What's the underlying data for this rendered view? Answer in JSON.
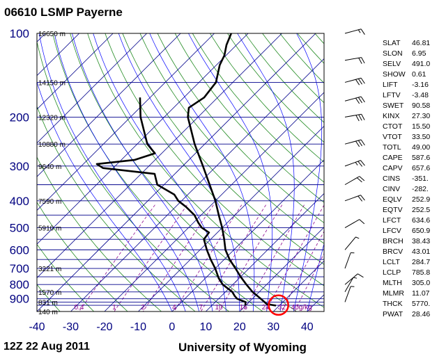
{
  "title": "06610 LSMP Payerne",
  "footer": {
    "time": "12Z 22 Aug 2011",
    "source": "University of Wyoming"
  },
  "colors": {
    "frame": "#000000",
    "isobar": "#00008b",
    "isotherm": "#00008b",
    "dry_adiabat": "#228b22",
    "moist_adiabat": "#0000ff",
    "mixing_ratio": "#8b008b",
    "axis_label": "#000080",
    "sounding": "#000000",
    "highlight_circle": "#ff0000"
  },
  "chart_data": {
    "type": "line",
    "chart_kind": "skew-T log-P sounding diagram",
    "xlabel": "",
    "ylabel": "",
    "xlim": [
      -40,
      45
    ],
    "ylim": [
      1000,
      100
    ],
    "y_scale": "log",
    "x_ticks": [
      -40,
      -30,
      -20,
      -10,
      0,
      10,
      20,
      30,
      40
    ],
    "x_tick_labels": [
      "-40",
      "-30",
      "-20",
      "-10",
      "0",
      "10",
      "20",
      "30",
      "40"
    ],
    "pressure_labels": [
      {
        "p": 100,
        "label": "100"
      },
      {
        "p": 200,
        "label": "200"
      },
      {
        "p": 300,
        "label": "300"
      },
      {
        "p": 400,
        "label": "400"
      },
      {
        "p": 500,
        "label": "500"
      },
      {
        "p": 600,
        "label": "600"
      },
      {
        "p": 700,
        "label": "700"
      },
      {
        "p": 800,
        "label": "800"
      },
      {
        "p": 900,
        "label": "900"
      }
    ],
    "isobars": [
      100,
      150,
      200,
      250,
      300,
      350,
      400,
      450,
      500,
      550,
      600,
      650,
      700,
      750,
      800,
      850,
      900,
      925,
      950,
      1000
    ],
    "height_labels": [
      {
        "p": 100,
        "label": "16650 m"
      },
      {
        "p": 150,
        "label": "14150 m"
      },
      {
        "p": 200,
        "label": "12320 m"
      },
      {
        "p": 250,
        "label": "10880 m"
      },
      {
        "p": 300,
        "label": "9640 m"
      },
      {
        "p": 400,
        "label": "7590 m"
      },
      {
        "p": 500,
        "label": "5910 m"
      },
      {
        "p": 700,
        "label": "3221 m"
      },
      {
        "p": 850,
        "label": "1570 m"
      },
      {
        "p": 925,
        "label": "831 m"
      },
      {
        "p": 1000,
        "label": "140 m"
      }
    ],
    "mixing_ratio_labels": [
      "0.4",
      "1",
      "2",
      "4",
      "7",
      "10",
      "16",
      "24",
      "32",
      "40g/kg"
    ],
    "mixing_ratio_values": [
      0.4,
      1,
      2,
      4,
      7,
      10,
      16,
      24,
      32,
      40
    ],
    "series": [
      {
        "role": "temperature",
        "color": "#000000",
        "points": [
          {
            "p": 952,
            "t": 29.0
          },
          {
            "p": 940,
            "t": 25.8
          },
          {
            "p": 925,
            "t": 24.6
          },
          {
            "p": 900,
            "t": 22.5
          },
          {
            "p": 850,
            "t": 18.0
          },
          {
            "p": 800,
            "t": 14.0
          },
          {
            "p": 750,
            "t": 10.0
          },
          {
            "p": 700,
            "t": 6.0
          },
          {
            "p": 650,
            "t": 1.6
          },
          {
            "p": 600,
            "t": -2.5
          },
          {
            "p": 550,
            "t": -6.0
          },
          {
            "p": 500,
            "t": -10.0
          },
          {
            "p": 450,
            "t": -14.8
          },
          {
            "p": 400,
            "t": -20.0
          },
          {
            "p": 350,
            "t": -26.5
          },
          {
            "p": 300,
            "t": -34.0
          },
          {
            "p": 250,
            "t": -43.0
          },
          {
            "p": 200,
            "t": -53.0
          },
          {
            "p": 185,
            "t": -55.5
          },
          {
            "p": 170,
            "t": -54.0
          },
          {
            "p": 150,
            "t": -55.0
          },
          {
            "p": 130,
            "t": -59.0
          },
          {
            "p": 120,
            "t": -60.5
          },
          {
            "p": 110,
            "t": -63.0
          },
          {
            "p": 100,
            "t": -65.0
          }
        ]
      },
      {
        "role": "dewpoint",
        "color": "#000000",
        "points": [
          {
            "p": 952,
            "t": 20.0
          },
          {
            "p": 940,
            "t": 19.5
          },
          {
            "p": 925,
            "t": 19.0
          },
          {
            "p": 900,
            "t": 15.5
          },
          {
            "p": 880,
            "t": 14.0
          },
          {
            "p": 850,
            "t": 12.0
          },
          {
            "p": 800,
            "t": 7.0
          },
          {
            "p": 760,
            "t": 4.0
          },
          {
            "p": 700,
            "t": 0.0
          },
          {
            "p": 650,
            "t": -4.0
          },
          {
            "p": 600,
            "t": -8.0
          },
          {
            "p": 550,
            "t": -12.0
          },
          {
            "p": 520,
            "t": -12.5
          },
          {
            "p": 500,
            "t": -16.0
          },
          {
            "p": 480,
            "t": -18.5
          },
          {
            "p": 450,
            "t": -22.0
          },
          {
            "p": 420,
            "t": -27.0
          },
          {
            "p": 400,
            "t": -31.0
          },
          {
            "p": 380,
            "t": -34.0
          },
          {
            "p": 350,
            "t": -42.0
          },
          {
            "p": 320,
            "t": -46.0
          },
          {
            "p": 305,
            "t": -63.0
          },
          {
            "p": 295,
            "t": -66.0
          },
          {
            "p": 285,
            "t": -56.0
          },
          {
            "p": 270,
            "t": -52.0
          },
          {
            "p": 250,
            "t": -57.0
          },
          {
            "p": 200,
            "t": -67.0
          },
          {
            "p": 170,
            "t": -73.0
          }
        ]
      }
    ],
    "wind_barbs": [
      {
        "p": 100,
        "dir": 255,
        "spd": 15
      },
      {
        "p": 125,
        "dir": 260,
        "spd": 20
      },
      {
        "p": 150,
        "dir": 255,
        "spd": 30
      },
      {
        "p": 175,
        "dir": 255,
        "spd": 30
      },
      {
        "p": 200,
        "dir": 260,
        "spd": 30
      },
      {
        "p": 250,
        "dir": 255,
        "spd": 30
      },
      {
        "p": 300,
        "dir": 250,
        "spd": 25
      },
      {
        "p": 350,
        "dir": 240,
        "spd": 20
      },
      {
        "p": 400,
        "dir": 250,
        "spd": 20
      },
      {
        "p": 500,
        "dir": 240,
        "spd": 10
      },
      {
        "p": 600,
        "dir": 220,
        "spd": 5
      },
      {
        "p": 700,
        "dir": 200,
        "spd": 5
      },
      {
        "p": 800,
        "dir": 230,
        "spd": 10
      },
      {
        "p": 850,
        "dir": 210,
        "spd": 5
      },
      {
        "p": 925,
        "dir": 200,
        "spd": 5
      }
    ],
    "highlight": {
      "p": 880,
      "t": 29
    }
  },
  "indices": [
    {
      "key": "SLAT",
      "value": "46.81"
    },
    {
      "key": "SLON",
      "value": "6.95"
    },
    {
      "key": "SELV",
      "value": "491.0"
    },
    {
      "key": "SHOW",
      "value": "0.61"
    },
    {
      "key": "LIFT",
      "value": "-3.16"
    },
    {
      "key": "LFTV",
      "value": "-3.48"
    },
    {
      "key": "SWET",
      "value": "90.58"
    },
    {
      "key": "KINX",
      "value": "27.30"
    },
    {
      "key": "CTOT",
      "value": "15.50"
    },
    {
      "key": "VTOT",
      "value": "33.50"
    },
    {
      "key": "TOTL",
      "value": "49.00"
    },
    {
      "key": "CAPE",
      "value": "587.6"
    },
    {
      "key": "CAPV",
      "value": "657.6"
    },
    {
      "key": "CINS",
      "value": "-351."
    },
    {
      "key": "CINV",
      "value": "-282."
    },
    {
      "key": "EQLV",
      "value": "252.9"
    },
    {
      "key": "EQTV",
      "value": "252.5"
    },
    {
      "key": "LFCT",
      "value": "634.6"
    },
    {
      "key": "LFCV",
      "value": "650.9"
    },
    {
      "key": "BRCH",
      "value": "38.43"
    },
    {
      "key": "BRCV",
      "value": "43.01"
    },
    {
      "key": "LCLT",
      "value": "284.7"
    },
    {
      "key": "LCLP",
      "value": "785.8"
    },
    {
      "key": "MLTH",
      "value": "305.0"
    },
    {
      "key": "MLMR",
      "value": "11.07"
    },
    {
      "key": "THCK",
      "value": "5770."
    },
    {
      "key": "PWAT",
      "value": "28.46"
    }
  ]
}
